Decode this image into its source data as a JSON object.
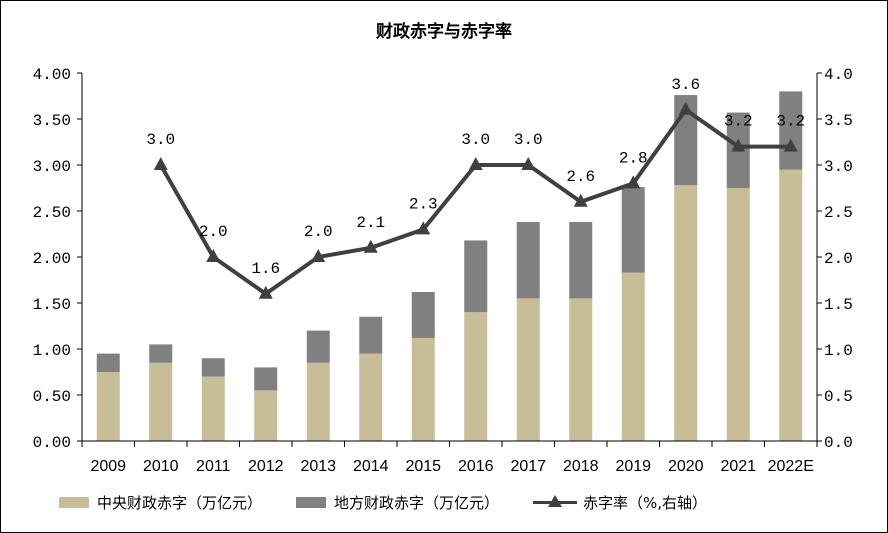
{
  "chart_data": {
    "type": "bar",
    "title": "财政赤字与赤字率",
    "categories": [
      "2009",
      "2010",
      "2011",
      "2012",
      "2013",
      "2014",
      "2015",
      "2016",
      "2017",
      "2018",
      "2019",
      "2020",
      "2021",
      "2022E"
    ],
    "series": [
      {
        "name": "中央财政赤字（万亿元）",
        "type": "bar",
        "stack": "deficit",
        "axis": "left",
        "color": "#c7bd97",
        "values": [
          0.75,
          0.85,
          0.7,
          0.55,
          0.85,
          0.95,
          1.12,
          1.4,
          1.55,
          1.55,
          1.83,
          2.78,
          2.75,
          2.95
        ]
      },
      {
        "name": "地方财政赤字（万亿元）",
        "type": "bar",
        "stack": "deficit",
        "axis": "left",
        "color": "#808080",
        "values": [
          0.2,
          0.2,
          0.2,
          0.25,
          0.35,
          0.4,
          0.5,
          0.78,
          0.83,
          0.83,
          0.93,
          0.98,
          0.82,
          0.85
        ]
      },
      {
        "name": "赤字率（%,右轴）",
        "type": "line",
        "axis": "right",
        "color": "#404040",
        "marker": "triangle",
        "values": [
          null,
          3.0,
          2.0,
          1.6,
          2.0,
          2.1,
          2.3,
          3.0,
          3.0,
          2.6,
          2.8,
          3.6,
          3.2,
          3.2
        ],
        "labels": [
          "",
          "3.0",
          "2.0",
          "1.6",
          "2.0",
          "2.1",
          "2.3",
          "3.0",
          "3.0",
          "2.6",
          "2.8",
          "3.6",
          "3.2",
          "3.2"
        ]
      }
    ],
    "y_left": {
      "min": 0,
      "max": 4,
      "step": 0.5,
      "ticks": [
        "0.00",
        "0.50",
        "1.00",
        "1.50",
        "2.00",
        "2.50",
        "3.00",
        "3.50",
        "4.00"
      ]
    },
    "y_right": {
      "min": 0,
      "max": 4,
      "step": 0.5,
      "ticks": [
        "0.0",
        "0.5",
        "1.0",
        "1.5",
        "2.0",
        "2.5",
        "3.0",
        "3.5",
        "4.0"
      ]
    },
    "grid": false,
    "legend_position": "bottom"
  }
}
